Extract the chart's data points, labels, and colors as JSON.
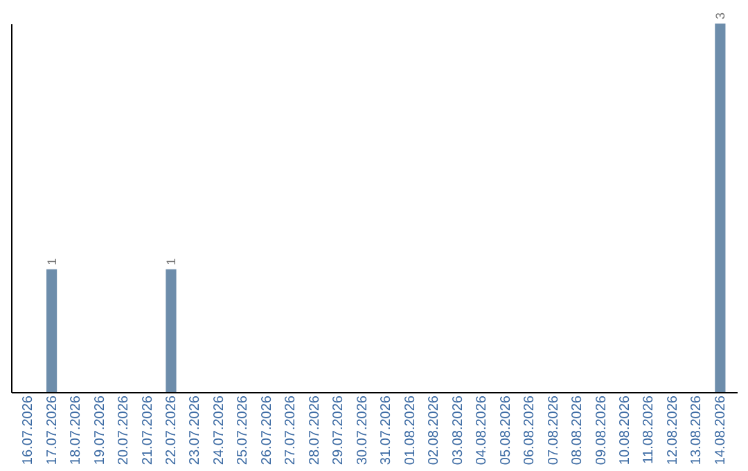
{
  "chart_data": {
    "type": "bar",
    "categories": [
      "16.07.2026",
      "17.07.2026",
      "18.07.2026",
      "19.07.2026",
      "20.07.2026",
      "21.07.2026",
      "22.07.2026",
      "23.07.2026",
      "24.07.2026",
      "25.07.2026",
      "26.07.2026",
      "27.07.2026",
      "28.07.2026",
      "29.07.2026",
      "30.07.2026",
      "31.07.2026",
      "01.08.2026",
      "02.08.2026",
      "03.08.2026",
      "04.08.2026",
      "05.08.2026",
      "06.08.2026",
      "07.08.2026",
      "08.08.2026",
      "09.08.2026",
      "10.08.2026",
      "11.08.2026",
      "12.08.2026",
      "13.08.2026",
      "14.08.2026"
    ],
    "values": [
      0,
      1,
      0,
      0,
      0,
      0,
      1,
      0,
      0,
      0,
      0,
      0,
      0,
      0,
      0,
      0,
      0,
      0,
      0,
      0,
      0,
      0,
      0,
      0,
      0,
      0,
      0,
      0,
      0,
      3
    ],
    "value_labels": [
      null,
      "1",
      null,
      null,
      null,
      null,
      "1",
      null,
      null,
      null,
      null,
      null,
      null,
      null,
      null,
      null,
      null,
      null,
      null,
      null,
      null,
      null,
      null,
      null,
      null,
      null,
      null,
      null,
      null,
      "3"
    ],
    "color": "#6d8dab",
    "grid": false
  }
}
